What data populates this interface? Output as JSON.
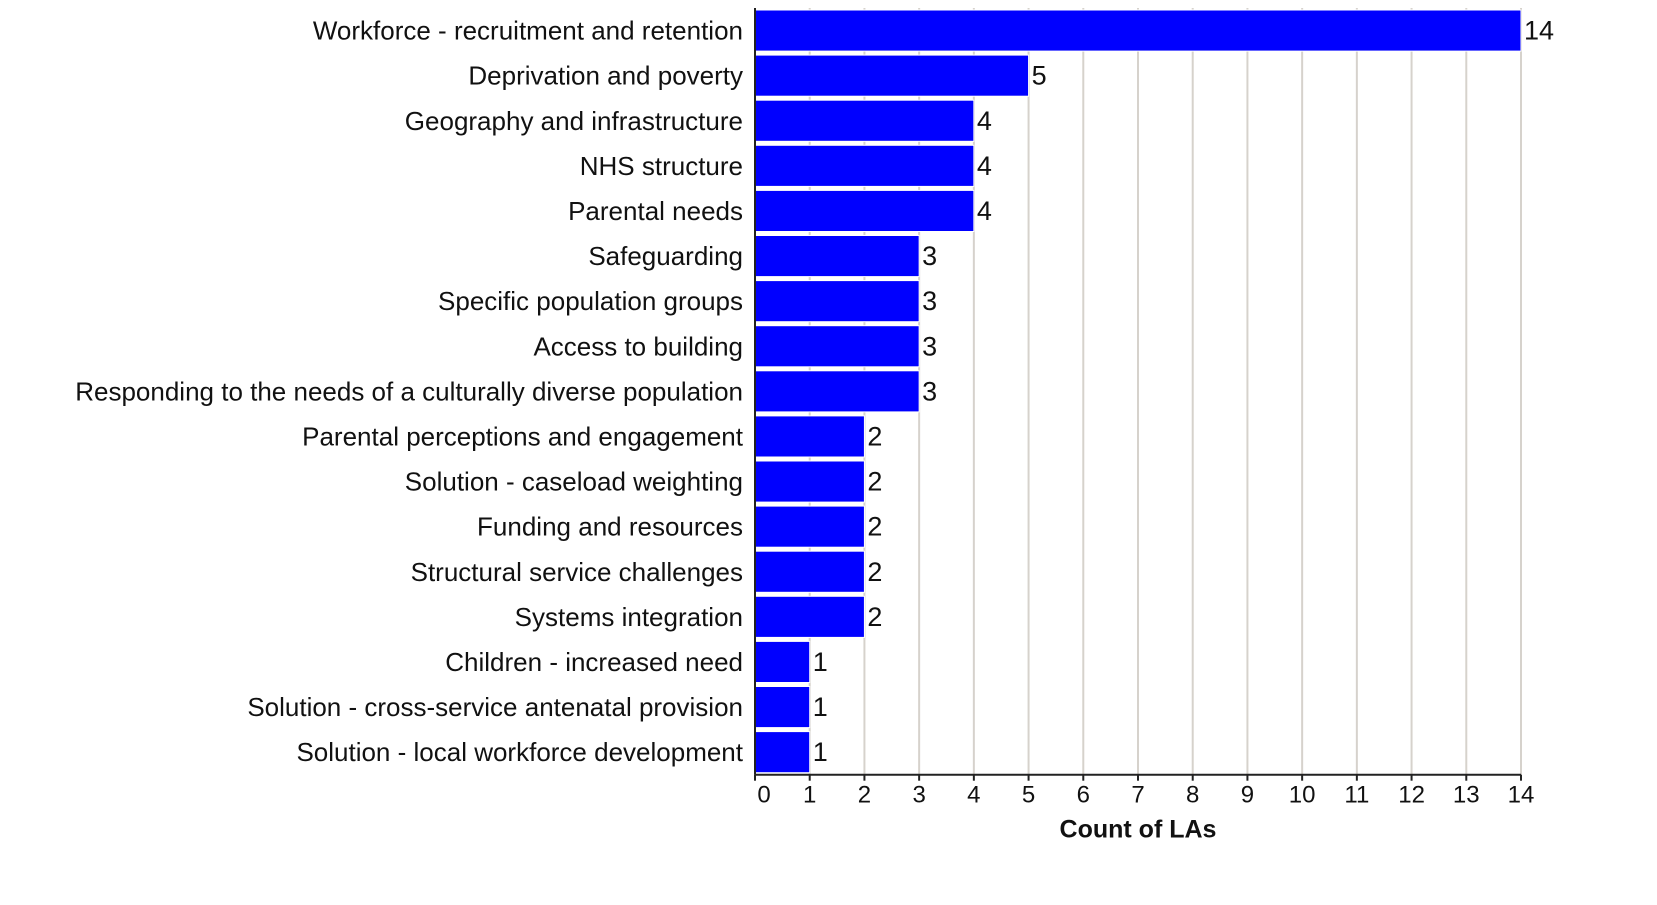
{
  "chart_data": {
    "type": "bar",
    "orientation": "horizontal",
    "categories": [
      "Workforce - recruitment and retention",
      "Deprivation and poverty",
      "Geography and infrastructure",
      "NHS structure",
      "Parental needs",
      "Safeguarding",
      "Specific population groups",
      "Access to building",
      "Responding to the needs of a culturally diverse population",
      "Parental perceptions and engagement",
      "Solution - caseload weighting",
      "Funding and resources",
      "Structural service challenges",
      "Systems integration",
      "Children - increased need",
      "Solution - cross-service antenatal provision",
      "Solution - local workforce development"
    ],
    "values": [
      14,
      5,
      4,
      4,
      4,
      3,
      3,
      3,
      3,
      2,
      2,
      2,
      2,
      2,
      1,
      1,
      1
    ],
    "title": "",
    "xlabel": "Count of LAs",
    "ylabel": "",
    "xlim": [
      0,
      14
    ],
    "xticks": [
      0,
      1,
      2,
      3,
      4,
      5,
      6,
      7,
      8,
      9,
      10,
      11,
      12,
      13,
      14
    ],
    "grid": true,
    "data_labels": true,
    "legend": "none",
    "colors": {
      "bar": "#0000ff",
      "bar_edge": "#ffffff",
      "grid": "#d6d2cc",
      "text": "#111111"
    }
  }
}
